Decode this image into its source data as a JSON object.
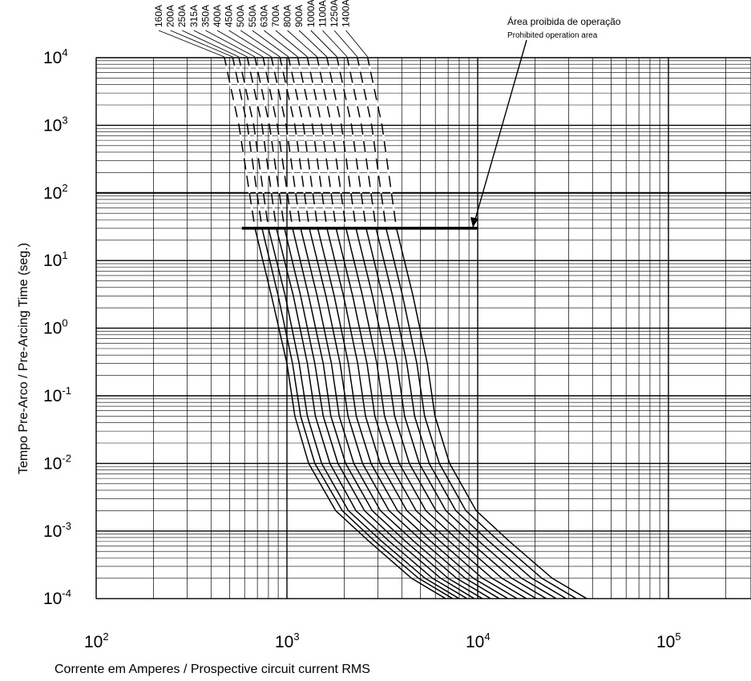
{
  "chart_data": {
    "type": "line",
    "title": "",
    "xlabel": "Corrente em Amperes / Prospective circuit current RMS",
    "ylabel": "Tempo Pre-Arco / Pre-Arcing Time (seg.)",
    "x_scale": "log",
    "y_scale": "log",
    "xlim": [
      100,
      300000
    ],
    "ylim": [
      0.0001,
      10000
    ],
    "grid": true,
    "x_ticks": [
      {
        "base": "10",
        "exp": "2",
        "value": 100
      },
      {
        "base": "10",
        "exp": "3",
        "value": 1000
      },
      {
        "base": "10",
        "exp": "4",
        "value": 10000
      },
      {
        "base": "10",
        "exp": "5",
        "value": 100000
      }
    ],
    "y_ticks": [
      {
        "base": "10",
        "exp": "4",
        "value": 10000
      },
      {
        "base": "10",
        "exp": "3",
        "value": 1000
      },
      {
        "base": "10",
        "exp": "2",
        "value": 100
      },
      {
        "base": "10",
        "exp": "1",
        "value": 10
      },
      {
        "base": "10",
        "exp": "0",
        "value": 1
      },
      {
        "base": "10",
        "exp": "-1",
        "value": 0.1
      },
      {
        "base": "10",
        "exp": "-2",
        "value": 0.01
      },
      {
        "base": "10",
        "exp": "-3",
        "value": 0.001
      },
      {
        "base": "10",
        "exp": "-4",
        "value": 0.0001
      }
    ],
    "prohibited_area": {
      "label_pt": "Área proibida de operação",
      "label_en": "Prohibited operation area",
      "time_s": 30,
      "current_range": [
        580,
        10000
      ]
    },
    "series": [
      {
        "name": "160A",
        "values": [
          [
            470,
            10000
          ],
          [
            560,
            1000
          ],
          [
            680,
            30
          ],
          [
            830,
            3
          ],
          [
            1000,
            0.3
          ],
          [
            1100,
            0.05
          ],
          [
            1300,
            0.01
          ],
          [
            1800,
            0.002
          ],
          [
            2700,
            0.0007
          ],
          [
            4500,
            0.0002
          ],
          [
            6800,
            0.0001
          ]
        ]
      },
      {
        "name": "200A",
        "values": [
          [
            520,
            10000
          ],
          [
            620,
            1000
          ],
          [
            740,
            30
          ],
          [
            900,
            3
          ],
          [
            1070,
            0.3
          ],
          [
            1180,
            0.05
          ],
          [
            1400,
            0.01
          ],
          [
            1950,
            0.002
          ],
          [
            2900,
            0.0007
          ],
          [
            4900,
            0.0002
          ],
          [
            7400,
            0.0001
          ]
        ]
      },
      {
        "name": "250A",
        "values": [
          [
            560,
            10000
          ],
          [
            670,
            1000
          ],
          [
            800,
            30
          ],
          [
            980,
            3
          ],
          [
            1160,
            0.3
          ],
          [
            1280,
            0.05
          ],
          [
            1520,
            0.01
          ],
          [
            2100,
            0.002
          ],
          [
            3150,
            0.0007
          ],
          [
            5300,
            0.0002
          ],
          [
            8000,
            0.0001
          ]
        ]
      },
      {
        "name": "315A",
        "values": [
          [
            620,
            10000
          ],
          [
            740,
            1000
          ],
          [
            880,
            30
          ],
          [
            1080,
            3
          ],
          [
            1280,
            0.3
          ],
          [
            1410,
            0.05
          ],
          [
            1680,
            0.01
          ],
          [
            2300,
            0.002
          ],
          [
            3450,
            0.0007
          ],
          [
            5800,
            0.0002
          ],
          [
            8800,
            0.0001
          ]
        ]
      },
      {
        "name": "350A",
        "values": [
          [
            680,
            10000
          ],
          [
            810,
            1000
          ],
          [
            970,
            30
          ],
          [
            1180,
            3
          ],
          [
            1400,
            0.3
          ],
          [
            1550,
            0.05
          ],
          [
            1850,
            0.01
          ],
          [
            2550,
            0.002
          ],
          [
            3800,
            0.0007
          ],
          [
            6400,
            0.0002
          ],
          [
            9600,
            0.0001
          ]
        ]
      },
      {
        "name": "400A",
        "values": [
          [
            750,
            10000
          ],
          [
            890,
            1000
          ],
          [
            1070,
            30
          ],
          [
            1300,
            3
          ],
          [
            1550,
            0.3
          ],
          [
            1700,
            0.05
          ],
          [
            2030,
            0.01
          ],
          [
            2800,
            0.002
          ],
          [
            4200,
            0.0007
          ],
          [
            7000,
            0.0002
          ],
          [
            10600,
            0.0001
          ]
        ]
      },
      {
        "name": "450A",
        "values": [
          [
            830,
            10000
          ],
          [
            990,
            1000
          ],
          [
            1180,
            30
          ],
          [
            1440,
            3
          ],
          [
            1710,
            0.3
          ],
          [
            1880,
            0.05
          ],
          [
            2240,
            0.01
          ],
          [
            3090,
            0.002
          ],
          [
            4640,
            0.0007
          ],
          [
            7750,
            0.0002
          ],
          [
            11700,
            0.0001
          ]
        ]
      },
      {
        "name": "500A",
        "values": [
          [
            920,
            10000
          ],
          [
            1100,
            1000
          ],
          [
            1310,
            30
          ],
          [
            1600,
            3
          ],
          [
            1900,
            0.3
          ],
          [
            2090,
            0.05
          ],
          [
            2490,
            0.01
          ],
          [
            3430,
            0.002
          ],
          [
            5150,
            0.0007
          ],
          [
            8600,
            0.0002
          ],
          [
            13000,
            0.0001
          ]
        ]
      },
      {
        "name": "550A",
        "values": [
          [
            1020,
            10000
          ],
          [
            1220,
            1000
          ],
          [
            1450,
            30
          ],
          [
            1770,
            3
          ],
          [
            2100,
            0.3
          ],
          [
            2310,
            0.05
          ],
          [
            2760,
            0.01
          ],
          [
            3800,
            0.002
          ],
          [
            5700,
            0.0007
          ],
          [
            9500,
            0.0002
          ],
          [
            14400,
            0.0001
          ]
        ]
      },
      {
        "name": "630A",
        "values": [
          [
            1140,
            10000
          ],
          [
            1360,
            1000
          ],
          [
            1620,
            30
          ],
          [
            1980,
            3
          ],
          [
            2350,
            0.3
          ],
          [
            2580,
            0.05
          ],
          [
            3080,
            0.01
          ],
          [
            4250,
            0.002
          ],
          [
            6370,
            0.0007
          ],
          [
            10600,
            0.0002
          ],
          [
            16100,
            0.0001
          ]
        ]
      },
      {
        "name": "700A",
        "values": [
          [
            1280,
            10000
          ],
          [
            1520,
            1000
          ],
          [
            1810,
            30
          ],
          [
            2210,
            3
          ],
          [
            2630,
            0.3
          ],
          [
            2890,
            0.05
          ],
          [
            3450,
            0.01
          ],
          [
            4750,
            0.002
          ],
          [
            7130,
            0.0007
          ],
          [
            11900,
            0.0002
          ],
          [
            18000,
            0.0001
          ]
        ]
      },
      {
        "name": "800A",
        "values": [
          [
            1440,
            10000
          ],
          [
            1710,
            1000
          ],
          [
            2040,
            30
          ],
          [
            2490,
            3
          ],
          [
            2960,
            0.3
          ],
          [
            3250,
            0.05
          ],
          [
            3880,
            0.01
          ],
          [
            5350,
            0.002
          ],
          [
            8030,
            0.0007
          ],
          [
            13400,
            0.0002
          ],
          [
            20300,
            0.0001
          ]
        ]
      },
      {
        "name": "900A",
        "values": [
          [
            1620,
            10000
          ],
          [
            1930,
            1000
          ],
          [
            2300,
            30
          ],
          [
            2810,
            3
          ],
          [
            3340,
            0.3
          ],
          [
            3670,
            0.05
          ],
          [
            4380,
            0.01
          ],
          [
            6040,
            0.002
          ],
          [
            9060,
            0.0007
          ],
          [
            15100,
            0.0002
          ],
          [
            22900,
            0.0001
          ]
        ]
      },
      {
        "name": "1000A",
        "values": [
          [
            1830,
            10000
          ],
          [
            2180,
            1000
          ],
          [
            2600,
            30
          ],
          [
            3170,
            3
          ],
          [
            3770,
            0.3
          ],
          [
            4140,
            0.05
          ],
          [
            4940,
            0.01
          ],
          [
            6810,
            0.002
          ],
          [
            10200,
            0.0007
          ],
          [
            17000,
            0.0002
          ],
          [
            25800,
            0.0001
          ]
        ]
      },
      {
        "name": "1100A",
        "values": [
          [
            2070,
            10000
          ],
          [
            2460,
            1000
          ],
          [
            2930,
            30
          ],
          [
            3580,
            3
          ],
          [
            4250,
            0.3
          ],
          [
            4670,
            0.05
          ],
          [
            5570,
            0.01
          ],
          [
            7680,
            0.002
          ],
          [
            11500,
            0.0007
          ],
          [
            19200,
            0.0002
          ],
          [
            29100,
            0.0001
          ]
        ]
      },
      {
        "name": "1250A",
        "values": [
          [
            2340,
            10000
          ],
          [
            2780,
            1000
          ],
          [
            3310,
            30
          ],
          [
            4040,
            3
          ],
          [
            4800,
            0.3
          ],
          [
            5270,
            0.05
          ],
          [
            6290,
            0.01
          ],
          [
            8670,
            0.002
          ],
          [
            13000,
            0.0007
          ],
          [
            21700,
            0.0002
          ],
          [
            32900,
            0.0001
          ]
        ]
      },
      {
        "name": "1400A",
        "values": [
          [
            2650,
            10000
          ],
          [
            3150,
            1000
          ],
          [
            3750,
            30
          ],
          [
            4580,
            3
          ],
          [
            5440,
            0.3
          ],
          [
            5970,
            0.05
          ],
          [
            7120,
            0.01
          ],
          [
            9820,
            0.002
          ],
          [
            14700,
            0.0007
          ],
          [
            24600,
            0.0002
          ],
          [
            37300,
            0.0001
          ]
        ]
      }
    ]
  }
}
